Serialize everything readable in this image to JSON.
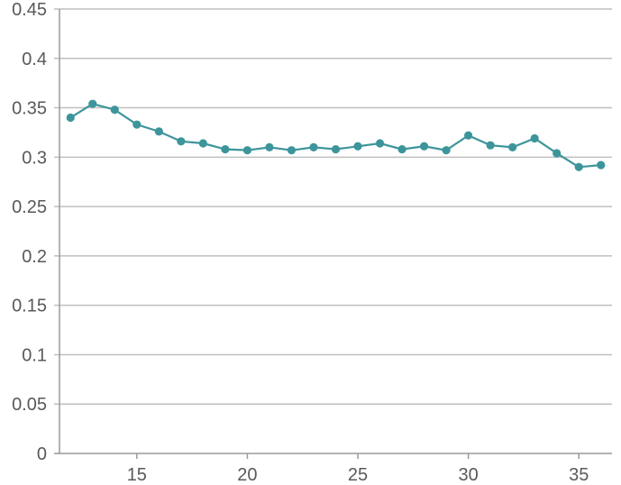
{
  "chart_data": {
    "type": "line",
    "title": "",
    "xlabel": "",
    "ylabel": "",
    "x": [
      12,
      13,
      14,
      15,
      16,
      17,
      18,
      19,
      20,
      21,
      22,
      23,
      24,
      25,
      26,
      27,
      28,
      29,
      30,
      31,
      32,
      33,
      34,
      35,
      36
    ],
    "series": [
      {
        "values": [
          0.34,
          0.354,
          0.348,
          0.333,
          0.326,
          0.316,
          0.314,
          0.308,
          0.307,
          0.31,
          0.307,
          0.31,
          0.308,
          0.311,
          0.314,
          0.308,
          0.311,
          0.307,
          0.322,
          0.312,
          0.31,
          0.319,
          0.304,
          0.29,
          0.292
        ],
        "color": "#3c959b"
      }
    ],
    "xlim": [
      11.5,
      36.5
    ],
    "ylim": [
      0,
      0.45
    ],
    "x_ticks": [
      15,
      20,
      25,
      30,
      35
    ],
    "x_tick_labels": [
      "15",
      "20",
      "25",
      "30",
      "35"
    ],
    "y_ticks": [
      0,
      0.05,
      0.1,
      0.15,
      0.2,
      0.25,
      0.3,
      0.35,
      0.4,
      0.45
    ],
    "y_tick_labels": [
      "0",
      "0.05",
      "0.1",
      "0.15",
      "0.2",
      "0.25",
      "0.3",
      "0.35",
      "0.4",
      "0.45"
    ],
    "grid": true,
    "legend": false,
    "markers": true
  }
}
